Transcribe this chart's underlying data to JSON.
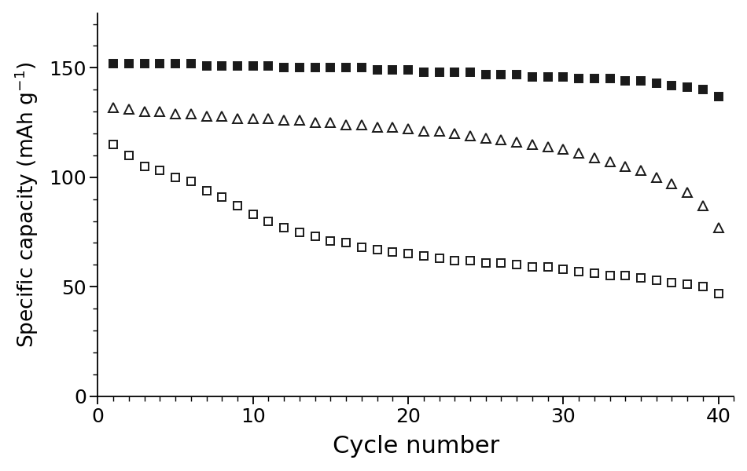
{
  "series": [
    {
      "label": "filled_squares",
      "marker": "s",
      "filled": true,
      "markerfacecolor": "#1a1a1a",
      "markeredgecolor": "#1a1a1a",
      "markersize": 7,
      "x": [
        1,
        2,
        3,
        4,
        5,
        6,
        7,
        8,
        9,
        10,
        11,
        12,
        13,
        14,
        15,
        16,
        17,
        18,
        19,
        20,
        21,
        22,
        23,
        24,
        25,
        26,
        27,
        28,
        29,
        30,
        31,
        32,
        33,
        34,
        35,
        36,
        37,
        38,
        39,
        40
      ],
      "y": [
        152,
        152,
        152,
        152,
        152,
        152,
        151,
        151,
        151,
        151,
        151,
        150,
        150,
        150,
        150,
        150,
        150,
        149,
        149,
        149,
        148,
        148,
        148,
        148,
        147,
        147,
        147,
        146,
        146,
        146,
        145,
        145,
        145,
        144,
        144,
        143,
        142,
        141,
        140,
        137
      ]
    },
    {
      "label": "open_triangles",
      "marker": "^",
      "filled": false,
      "markerfacecolor": "none",
      "markeredgecolor": "#1a1a1a",
      "markersize": 8,
      "x": [
        1,
        2,
        3,
        4,
        5,
        6,
        7,
        8,
        9,
        10,
        11,
        12,
        13,
        14,
        15,
        16,
        17,
        18,
        19,
        20,
        21,
        22,
        23,
        24,
        25,
        26,
        27,
        28,
        29,
        30,
        31,
        32,
        33,
        34,
        35,
        36,
        37,
        38,
        39,
        40
      ],
      "y": [
        132,
        131,
        130,
        130,
        129,
        129,
        128,
        128,
        127,
        127,
        127,
        126,
        126,
        125,
        125,
        124,
        124,
        123,
        123,
        122,
        121,
        121,
        120,
        119,
        118,
        117,
        116,
        115,
        114,
        113,
        111,
        109,
        107,
        105,
        103,
        100,
        97,
        93,
        87,
        77
      ]
    },
    {
      "label": "open_squares",
      "marker": "s",
      "filled": false,
      "markerfacecolor": "none",
      "markeredgecolor": "#1a1a1a",
      "markersize": 7,
      "x": [
        1,
        2,
        3,
        4,
        5,
        6,
        7,
        8,
        9,
        10,
        11,
        12,
        13,
        14,
        15,
        16,
        17,
        18,
        19,
        20,
        21,
        22,
        23,
        24,
        25,
        26,
        27,
        28,
        29,
        30,
        31,
        32,
        33,
        34,
        35,
        36,
        37,
        38,
        39,
        40
      ],
      "y": [
        115,
        110,
        105,
        103,
        100,
        98,
        94,
        91,
        87,
        83,
        80,
        77,
        75,
        73,
        71,
        70,
        68,
        67,
        66,
        65,
        64,
        63,
        62,
        62,
        61,
        61,
        60,
        59,
        59,
        58,
        57,
        56,
        55,
        55,
        54,
        53,
        52,
        51,
        50,
        47
      ]
    }
  ],
  "xlabel": "Cycle number",
  "ylabel": "Specific capacity (mAh g⁻¹)",
  "xlim": [
    0,
    41
  ],
  "ylim": [
    0,
    175
  ],
  "xticks_major": [
    0,
    10,
    20,
    30,
    40
  ],
  "yticks_major": [
    0,
    50,
    100,
    150
  ],
  "background_color": "#ffffff",
  "xlabel_fontsize": 22,
  "ylabel_fontsize": 19,
  "tick_fontsize": 18,
  "spine_linewidth": 1.3
}
